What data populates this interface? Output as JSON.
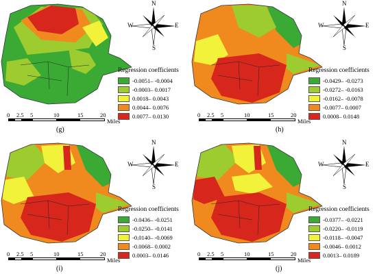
{
  "legend_colors": [
    "#3aaa35",
    "#9ccc30",
    "#f2f23a",
    "#f08a1e",
    "#d7261c"
  ],
  "compass": {
    "n": "N",
    "s": "S",
    "e": "E",
    "w": "W"
  },
  "scale": {
    "ticks": [
      "0",
      "2.5",
      "5",
      "10",
      "15",
      "20"
    ],
    "unit": "Miles"
  },
  "panels": [
    {
      "label": "(g)",
      "legend_title": "Regression coefficients",
      "classes": [
        "-0.0051– -0.0004",
        "-0.0003– 0.0017",
        "0.0018– 0.0043",
        "0.0044– 0.0076",
        "0.0077– 0.0130"
      ]
    },
    {
      "label": "(h)",
      "legend_title": "Regression coefficients",
      "classes": [
        "-0.0429– -0.0273",
        "-0.0272– -0.0163",
        "-0.0162– -0.0078",
        "-0.0077– 0.0007",
        "0.0008– 0.0148"
      ]
    },
    {
      "label": "(i)",
      "legend_title": "Regression coefficients",
      "classes": [
        "-0.0436– -0.0251",
        "-0.0250– -0.0141",
        "-0.0140– -0.0069",
        "-0.0068– 0.0002",
        "0.0003– 0.0146"
      ]
    },
    {
      "label": "(j)",
      "legend_title": "Regression coefficients",
      "classes": [
        "-0.0377– -0.0221",
        "-0.0220– -0.0119",
        "-0.0118– -0.0047",
        "-0.0046– 0.0012",
        "0.0013– 0.0189"
      ]
    }
  ]
}
